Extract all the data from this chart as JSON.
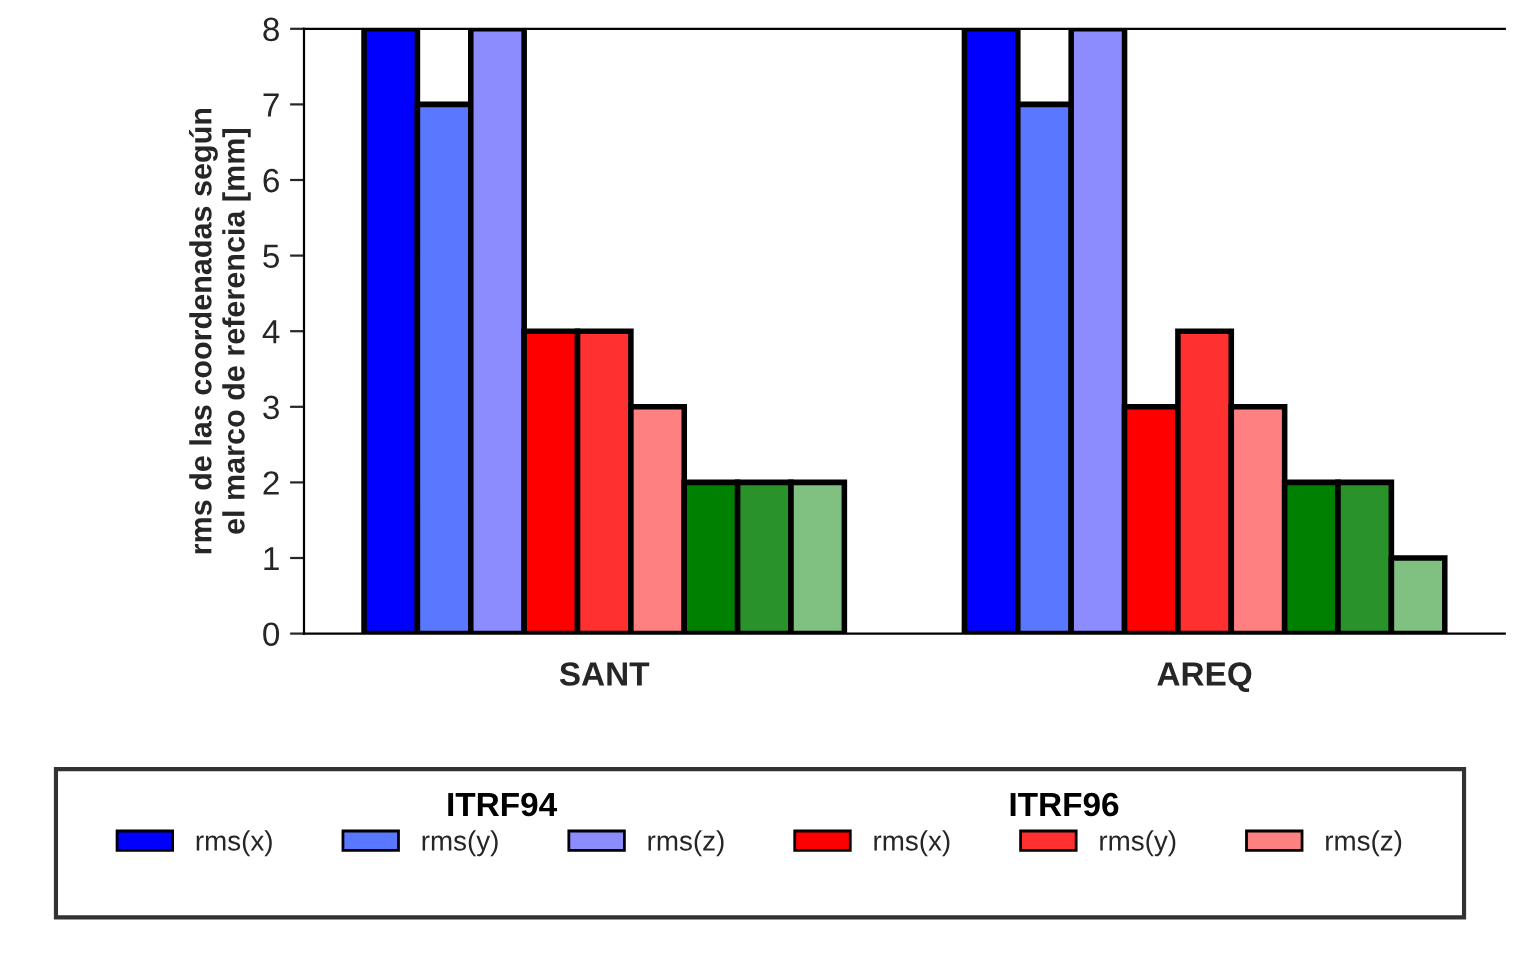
{
  "chart_data": {
    "type": "bar",
    "ylabel": "rms de las coordenadas según\nel marco de referencia [mm]",
    "categories": [
      "SANT",
      "AREQ"
    ],
    "ylim": [
      0,
      8
    ],
    "yticks": [
      0,
      1,
      2,
      3,
      4,
      5,
      6,
      7,
      8
    ],
    "grid": false,
    "legend": "bottom",
    "annotations": [
      "ITRF94",
      "ITRF96"
    ],
    "series": [
      {
        "name": "rms(x)",
        "color": "#0000ff",
        "values": [
          8,
          8
        ]
      },
      {
        "name": "rms(y)",
        "color": "#5a78ff",
        "values": [
          7,
          7
        ]
      },
      {
        "name": "rms(z)",
        "color": "#8c8cff",
        "values": [
          8,
          8
        ]
      },
      {
        "name": "rms(x)",
        "color": "#ff0000",
        "values": [
          4,
          3
        ]
      },
      {
        "name": "rms(y)",
        "color": "#ff3030",
        "values": [
          4,
          4
        ]
      },
      {
        "name": "rms(z)",
        "color": "#ff8080",
        "values": [
          3,
          3
        ]
      },
      {
        "color": "#008000",
        "values": [
          2,
          2
        ]
      },
      {
        "color": "#2a922a",
        "values": [
          2,
          2
        ]
      },
      {
        "color": "#80c080",
        "values": [
          2,
          1
        ]
      }
    ]
  }
}
